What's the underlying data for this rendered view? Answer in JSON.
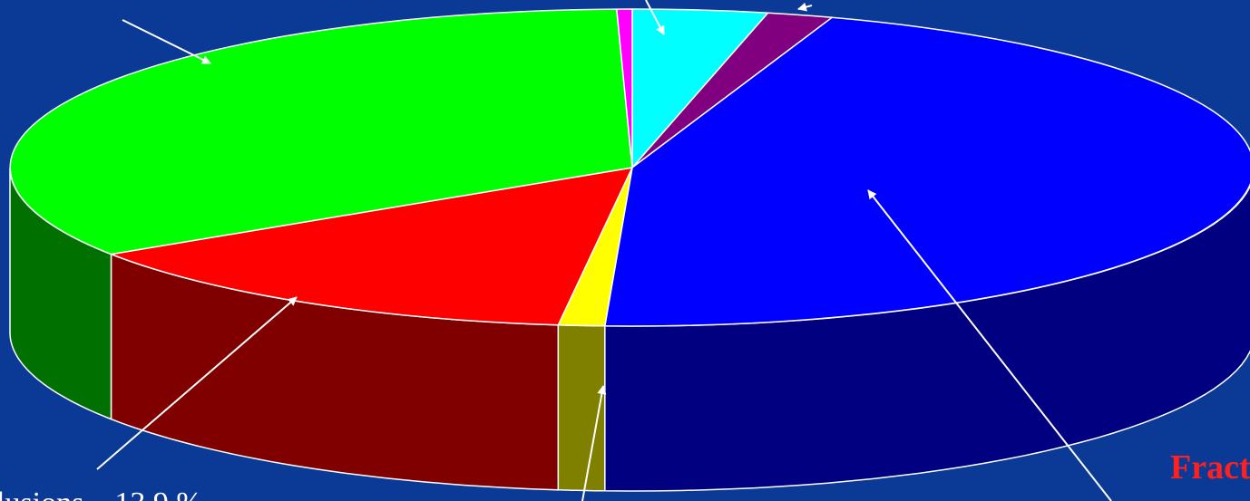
{
  "chart_data": {
    "type": "pie3d",
    "categories": [
      null,
      null,
      null,
      null,
      null,
      null,
      null
    ],
    "values": [
      3.5,
      1.7,
      45.5,
      1.2,
      13.9,
      33.8,
      0.4
    ],
    "colors": [
      "#00ffff",
      "#800080",
      "#0000ff",
      "#ffff00",
      "#ff0000",
      "#00ff00",
      "#ff00ff"
    ],
    "side_colors": [
      "#008080",
      "#400040",
      "#000080",
      "#808000",
      "#800000",
      "#007000",
      "#800080"
    ],
    "annotations": [
      "lusions – 13.9 %",
      "Fract"
    ]
  }
}
